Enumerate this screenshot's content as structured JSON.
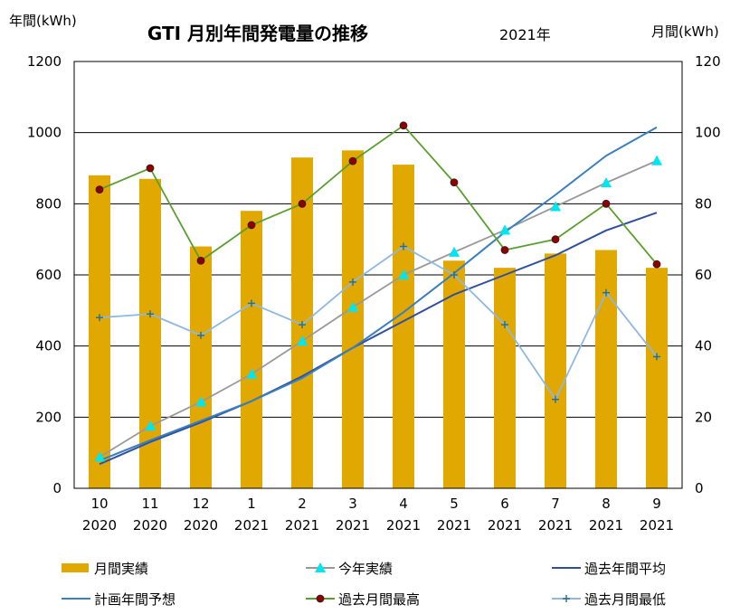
{
  "chart_data": {
    "type": "bar+line",
    "title": "GTI 月別年間発電量の推移",
    "subtitle": "2021年",
    "ylabel_left": "年間(kWh)",
    "ylabel_right": "月間(kWh)",
    "ylim_left": [
      0,
      1200
    ],
    "ylim_right": [
      0,
      120
    ],
    "yticks_left": [
      "0",
      "200",
      "400",
      "600",
      "800",
      "1000",
      "1200"
    ],
    "yticks_right": [
      "0",
      "20",
      "40",
      "60",
      "80",
      "100",
      "120"
    ],
    "grid": true,
    "legend_position": "bottom",
    "categories": [
      {
        "month": "10",
        "year": "2020"
      },
      {
        "month": "11",
        "year": "2020"
      },
      {
        "month": "12",
        "year": "2020"
      },
      {
        "month": "1",
        "year": "2021"
      },
      {
        "month": "2",
        "year": "2021"
      },
      {
        "month": "3",
        "year": "2021"
      },
      {
        "month": "4",
        "year": "2021"
      },
      {
        "month": "5",
        "year": "2021"
      },
      {
        "month": "6",
        "year": "2021"
      },
      {
        "month": "7",
        "year": "2021"
      },
      {
        "month": "8",
        "year": "2021"
      },
      {
        "month": "9",
        "year": "2021"
      }
    ],
    "series": [
      {
        "name": "月間実績",
        "kind": "bar",
        "axis": "right",
        "color": "#E0A800",
        "values": [
          88,
          87,
          68,
          78,
          93,
          95,
          91,
          64,
          62,
          66,
          67,
          62
        ]
      },
      {
        "name": "今年実績",
        "kind": "line",
        "axis": "left",
        "color": "#999999",
        "marker": "triangle",
        "marker_color": "#00E5F0",
        "values": [
          88,
          175,
          243,
          321,
          414,
          509,
          600,
          664,
          726,
          792,
          859,
          921
        ]
      },
      {
        "name": "過去年間平均",
        "kind": "line",
        "axis": "left",
        "color": "#2F4F9F",
        "marker": "none",
        "values": [
          68,
          130,
          185,
          245,
          315,
          395,
          470,
          545,
          600,
          655,
          725,
          775
        ]
      },
      {
        "name": "計画年間予想",
        "kind": "line",
        "axis": "left",
        "color": "#3A7FC0",
        "marker": "none",
        "values": [
          78,
          135,
          190,
          245,
          310,
          395,
          495,
          605,
          720,
          825,
          935,
          1015
        ]
      },
      {
        "name": "過去月間最高",
        "kind": "line",
        "axis": "right",
        "color": "#5A9E2F",
        "marker": "circle",
        "marker_color": "#8B0000",
        "values": [
          84,
          90,
          64,
          74,
          80,
          92,
          102,
          86,
          67,
          70,
          80,
          63
        ]
      },
      {
        "name": "過去月間最低",
        "kind": "line",
        "axis": "right",
        "color": "#8FB8E0",
        "marker": "plus",
        "marker_color": "#1F6F8F",
        "values": [
          48,
          49,
          43,
          52,
          46,
          58,
          68,
          60,
          46,
          25,
          55,
          37
        ]
      }
    ]
  }
}
